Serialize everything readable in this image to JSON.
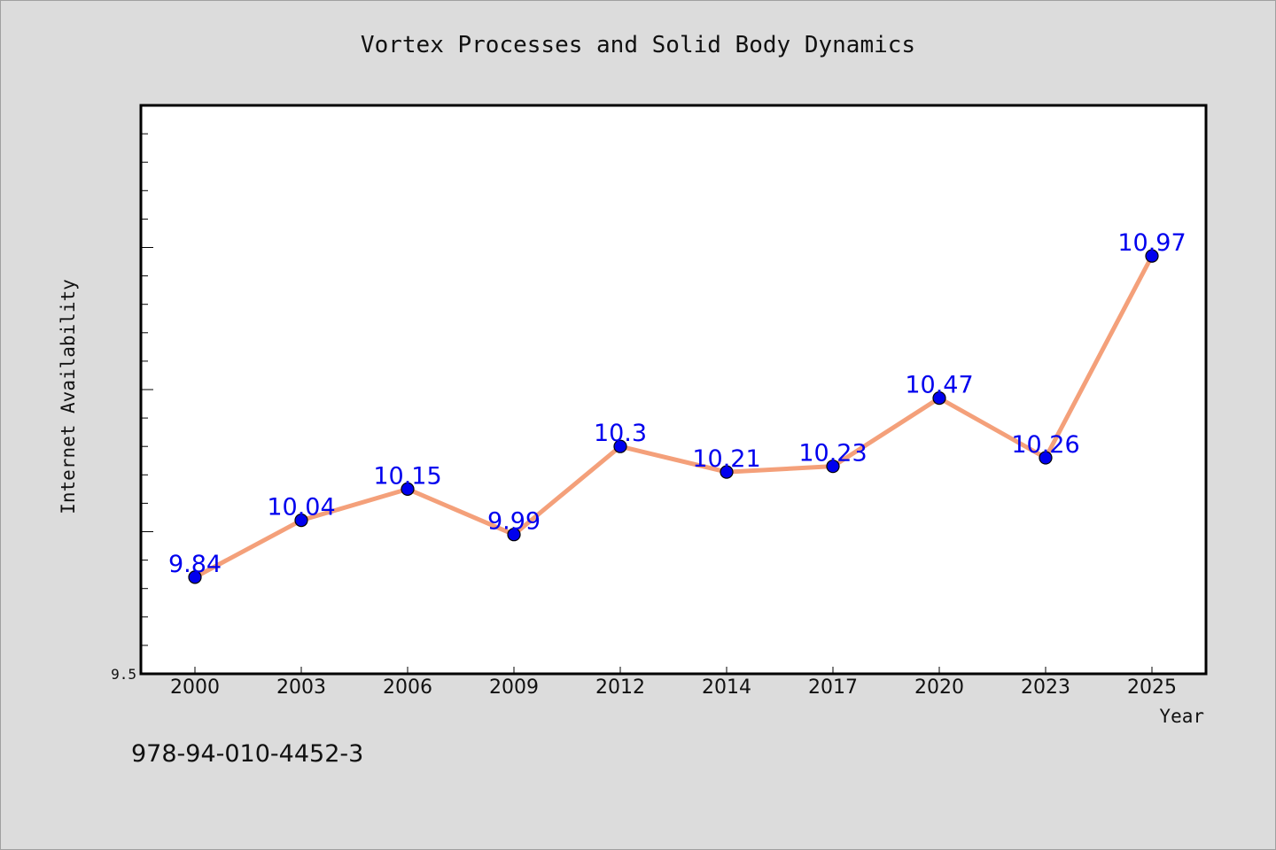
{
  "chart_data": {
    "type": "line",
    "title": "Vortex Processes and Solid Body Dynamics",
    "xlabel": "Year",
    "ylabel": "Internet Availability",
    "categories": [
      "2000",
      "2003",
      "2006",
      "2009",
      "2012",
      "2014",
      "2017",
      "2020",
      "2023",
      "2025"
    ],
    "values": [
      9.84,
      10.04,
      10.15,
      9.99,
      10.3,
      10.21,
      10.23,
      10.47,
      10.26,
      10.97
    ],
    "data_labels": [
      "9.84",
      "10.04",
      "10.15",
      "9.99",
      "10.3",
      "10.21",
      "10.23",
      "10.47",
      "10.26",
      "10.97"
    ],
    "ylim": [
      9.5,
      11.5
    ],
    "y_tick_labels": [
      "9.5"
    ],
    "grid": false,
    "legend": "none",
    "colors": {
      "line": "#f4a07a",
      "marker": "#0000ee",
      "marker_edge": "#000000",
      "label": "#0000ee"
    }
  },
  "footer": {
    "isbn": "978-94-010-4452-3"
  }
}
